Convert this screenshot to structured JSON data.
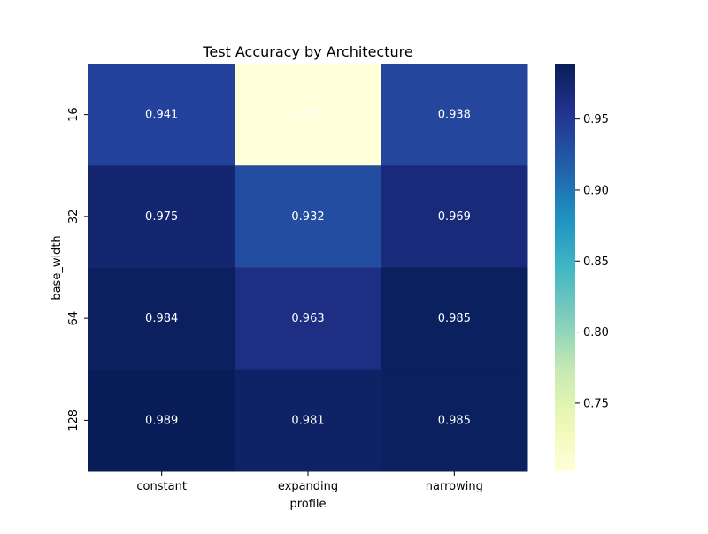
{
  "chart_data": {
    "type": "heatmap",
    "title": "Test Accuracy by Architecture",
    "xlabel": "profile",
    "ylabel": "base_width",
    "x_categories": [
      "constant",
      "expanding",
      "narrowing"
    ],
    "y_categories": [
      "16",
      "32",
      "64",
      "128"
    ],
    "values": [
      [
        0.941,
        0.702,
        0.938
      ],
      [
        0.975,
        0.932,
        0.969
      ],
      [
        0.984,
        0.963,
        0.985
      ],
      [
        0.989,
        0.981,
        0.985
      ]
    ],
    "value_labels": [
      [
        "0.941",
        "0.702",
        "0.938"
      ],
      [
        "0.975",
        "0.932",
        "0.969"
      ],
      [
        "0.984",
        "0.963",
        "0.985"
      ],
      [
        "0.989",
        "0.981",
        "0.985"
      ]
    ],
    "colormap": "YlGnBu",
    "color_range": [
      0.702,
      0.989
    ],
    "colorbar": {
      "ticks": [
        0.75,
        0.8,
        0.85,
        0.9,
        0.95
      ],
      "tick_labels": [
        "0.75",
        "0.80",
        "0.85",
        "0.90",
        "0.95"
      ]
    },
    "annotation_color": "#ffffff"
  }
}
